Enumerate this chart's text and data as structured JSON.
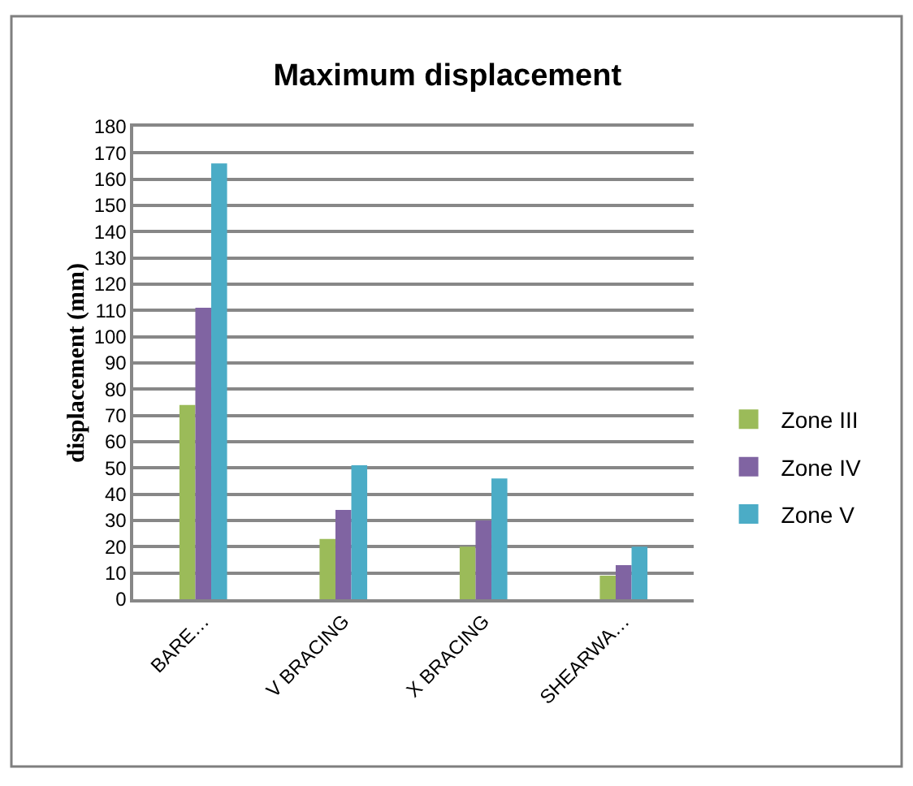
{
  "chart_data": {
    "type": "bar",
    "title": "Maximum displacement",
    "ylabel": "displacement (mm)",
    "categories": [
      "BARE…",
      "V BRACING",
      "X BRACING",
      "SHEARWA…"
    ],
    "series": [
      {
        "name": "Zone III",
        "color": "#9bbb59",
        "values": [
          74,
          23,
          20,
          9
        ]
      },
      {
        "name": "Zone IV",
        "color": "#8064a2",
        "values": [
          111,
          34,
          30,
          13
        ]
      },
      {
        "name": "Zone V",
        "color": "#4bacc6",
        "values": [
          166,
          51,
          46,
          20
        ]
      }
    ],
    "ylim": [
      0,
      180
    ],
    "yticks": [
      0,
      10,
      20,
      30,
      40,
      50,
      60,
      70,
      80,
      90,
      100,
      110,
      120,
      130,
      140,
      150,
      160,
      170,
      180
    ],
    "grid": "y",
    "legend": "right"
  }
}
